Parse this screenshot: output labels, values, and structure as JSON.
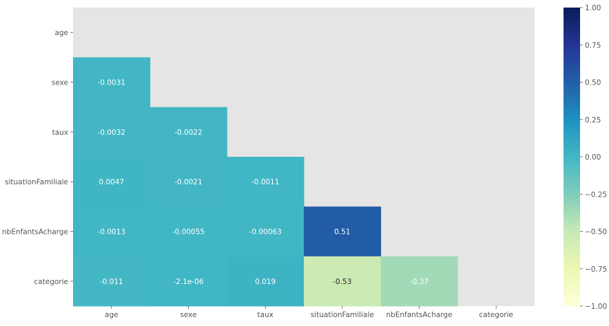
{
  "chart_data": {
    "type": "heatmap",
    "title": "",
    "xlabel": "",
    "ylabel": "",
    "x_categories": [
      "age",
      "sexe",
      "taux",
      "situationFamiliale",
      "nbEnfantsAcharge",
      "categorie"
    ],
    "y_categories": [
      "age",
      "sexe",
      "taux",
      "situationFamiliale",
      "nbEnfantsAcharge",
      "categorie"
    ],
    "mask": "upper-triangle-including-diagonal",
    "cells": [
      {
        "row": 1,
        "col": 0,
        "value": -0.0031,
        "label": "-0.0031"
      },
      {
        "row": 2,
        "col": 0,
        "value": -0.0032,
        "label": "-0.0032"
      },
      {
        "row": 2,
        "col": 1,
        "value": -0.0022,
        "label": "-0.0022"
      },
      {
        "row": 3,
        "col": 0,
        "value": 0.0047,
        "label": "0.0047"
      },
      {
        "row": 3,
        "col": 1,
        "value": -0.0021,
        "label": "-0.0021"
      },
      {
        "row": 3,
        "col": 2,
        "value": -0.0011,
        "label": "-0.0011"
      },
      {
        "row": 4,
        "col": 0,
        "value": -0.0013,
        "label": "-0.0013"
      },
      {
        "row": 4,
        "col": 1,
        "value": -0.00055,
        "label": "-0.00055"
      },
      {
        "row": 4,
        "col": 2,
        "value": -0.00063,
        "label": "-0.00063"
      },
      {
        "row": 4,
        "col": 3,
        "value": 0.51,
        "label": "0.51"
      },
      {
        "row": 5,
        "col": 0,
        "value": -0.011,
        "label": "-0.011"
      },
      {
        "row": 5,
        "col": 1,
        "value": -2.1e-06,
        "label": "-2.1e-06"
      },
      {
        "row": 5,
        "col": 2,
        "value": 0.019,
        "label": "0.019"
      },
      {
        "row": 5,
        "col": 3,
        "value": -0.53,
        "label": "-0.53"
      },
      {
        "row": 5,
        "col": 4,
        "value": -0.37,
        "label": "-0.37"
      }
    ],
    "colorbar": {
      "colormap": "YlGnBu",
      "vmin": -1.0,
      "vmax": 1.0,
      "ticks": [
        1.0,
        0.75,
        0.5,
        0.25,
        0.0,
        -0.25,
        -0.5,
        -0.75,
        -1.0
      ],
      "tick_labels": [
        "1.00",
        "0.75",
        "0.50",
        "0.25",
        "0.00",
        "−0.25",
        "−0.50",
        "−0.75",
        "−1.00"
      ]
    },
    "background_color": "#e5e5e5",
    "text_colors": {
      "light": "#ffffff",
      "dark": "#262626"
    },
    "tick_label_color": "#555555",
    "grid": false
  }
}
